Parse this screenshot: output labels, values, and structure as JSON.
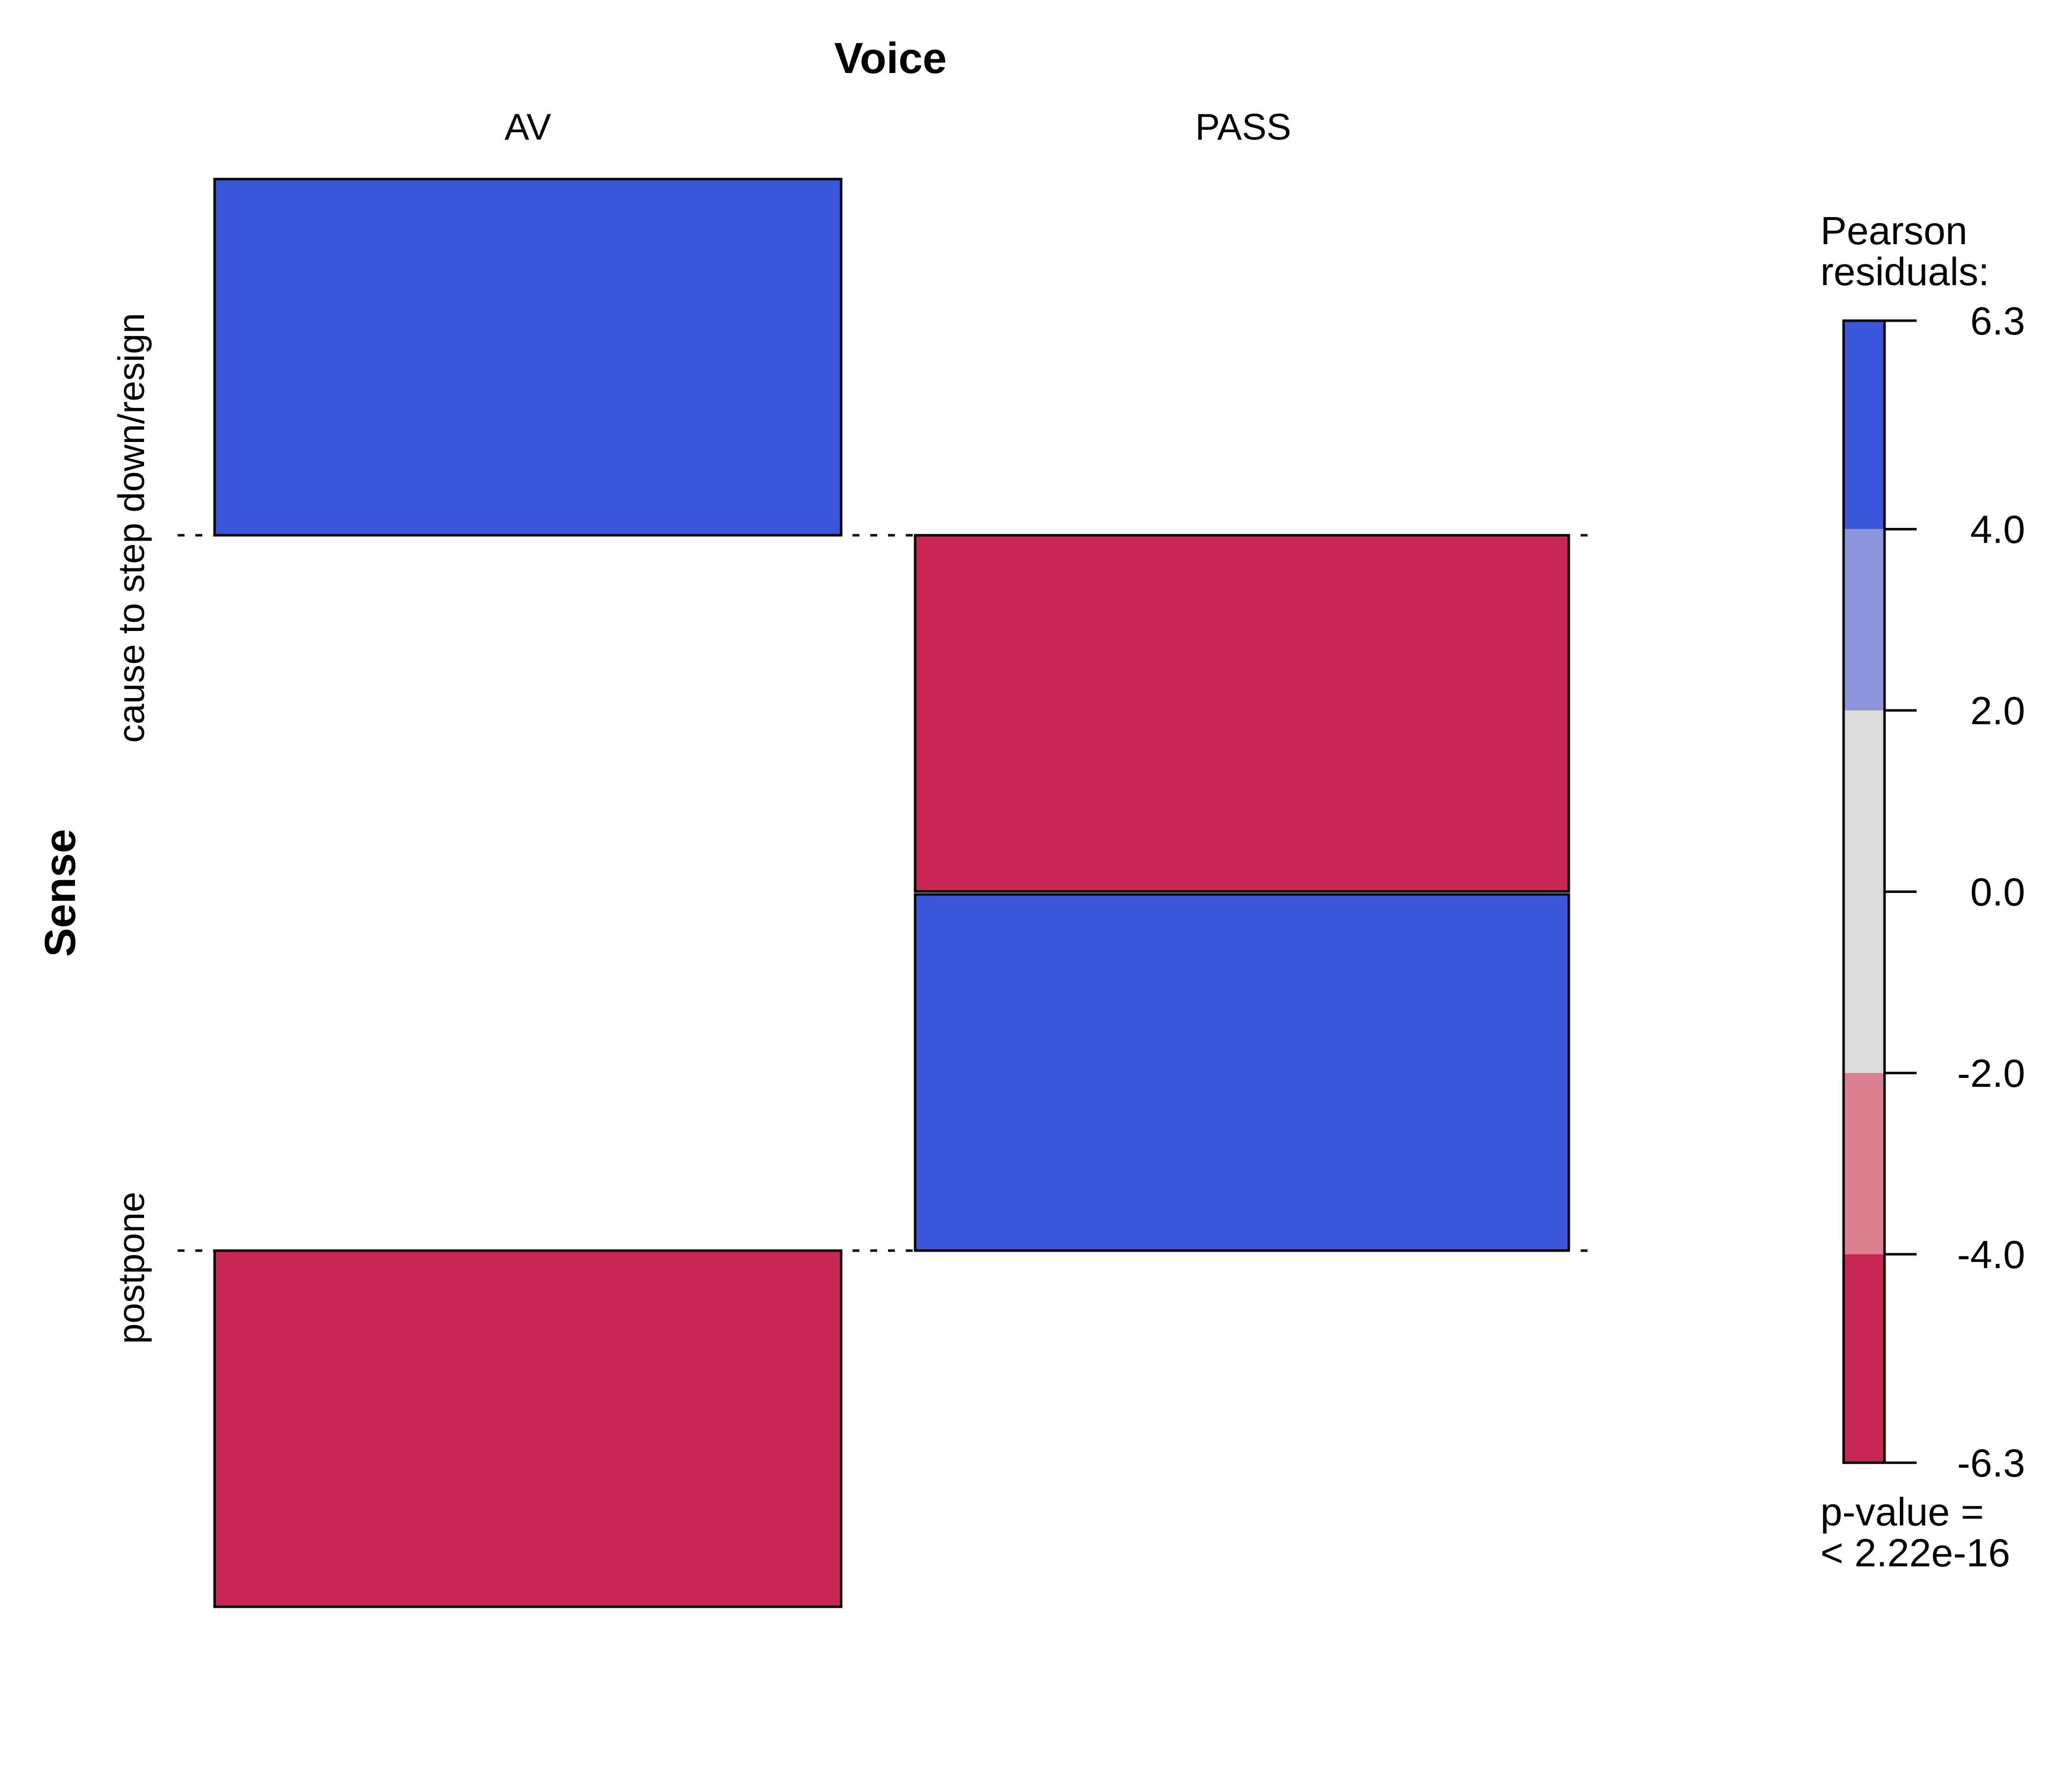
{
  "chart_data": {
    "type": "association",
    "title": "",
    "col_variable": "Voice",
    "row_variable": "Sense",
    "columns": [
      "AV",
      "PASS"
    ],
    "rows": [
      "cause to step down/resign",
      "postpone"
    ],
    "cells": [
      {
        "row": "cause to step down/resign",
        "col": "AV",
        "residual": 6.3
      },
      {
        "row": "cause to step down/resign",
        "col": "PASS",
        "residual": -6.3
      },
      {
        "row": "postpone",
        "col": "AV",
        "residual": -6.3
      },
      {
        "row": "postpone",
        "col": "PASS",
        "residual": 6.3
      }
    ],
    "legend": {
      "title_lines": [
        "Pearson",
        "residuals:"
      ],
      "ticks": [
        "6.3",
        "4.0",
        "2.0",
        "0.0",
        "-2.0",
        "-4.0",
        "-6.3"
      ],
      "breaks": [
        6.3,
        4.0,
        2.0,
        0.0,
        -2.0,
        -4.0,
        -6.3
      ],
      "bands": [
        {
          "from": 4.0,
          "to": 6.3,
          "color": "#3a57dc"
        },
        {
          "from": 2.0,
          "to": 4.0,
          "color": "#8d95dd"
        },
        {
          "from": -2.0,
          "to": 2.0,
          "color": "#dcdcdc"
        },
        {
          "from": -4.0,
          "to": -2.0,
          "color": "#dc7f90"
        },
        {
          "from": -6.3,
          "to": -4.0,
          "color": "#c82754"
        }
      ],
      "pvalue_lines": [
        "p-value =",
        "< 2.22e-16"
      ]
    },
    "colors": {
      "positive": "#3a57dc",
      "negative": "#c82754"
    }
  }
}
